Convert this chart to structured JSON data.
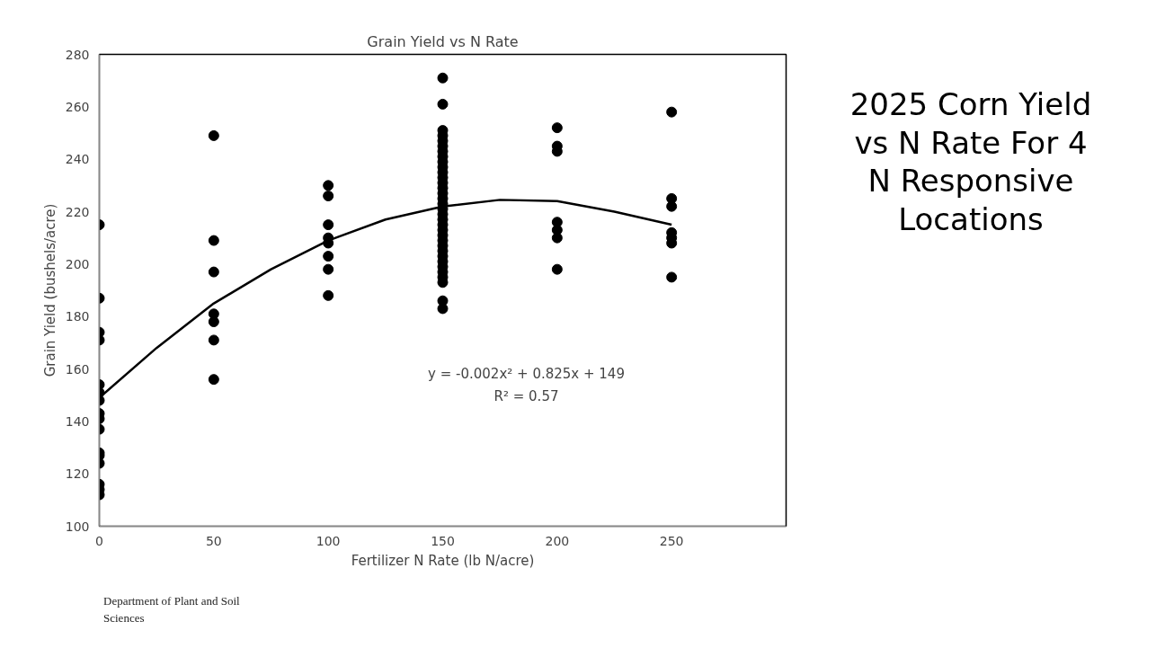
{
  "chart_data": {
    "type": "scatter",
    "title": "Grain Yield vs N Rate",
    "subtitle": "2025 Corn Yield\nvs N Rate For 4\nN Responsive\nLocations",
    "xlabel": "Fertilizer N Rate (lb N/acre)",
    "ylabel": "Grain Yield (bushels/acre)",
    "xlim": [
      0,
      300
    ],
    "xticks": [
      0,
      50,
      100,
      150,
      200,
      250
    ],
    "ylim": [
      100,
      280
    ],
    "yticks": [
      100,
      120,
      140,
      160,
      180,
      200,
      220,
      240,
      260,
      280
    ],
    "grid": false,
    "marker": "circle",
    "series": [
      {
        "color": "#000000",
        "x": [
          0,
          0,
          0,
          0,
          0,
          0,
          0,
          0,
          0,
          0,
          0,
          0,
          0,
          0,
          0,
          0,
          50,
          50,
          50,
          50,
          50,
          50,
          50,
          100,
          100,
          100,
          100,
          100,
          100,
          100,
          100,
          150,
          150,
          150,
          150,
          150,
          150,
          150,
          150,
          150,
          150,
          150,
          150,
          150,
          150,
          150,
          150,
          150,
          150,
          150,
          150,
          150,
          150,
          150,
          150,
          150,
          150,
          150,
          150,
          150,
          150,
          150,
          150,
          150,
          150,
          200,
          200,
          200,
          200,
          200,
          200,
          200,
          250,
          250,
          250,
          250,
          250,
          250,
          250
        ],
        "values": [
          215,
          187,
          174,
          171,
          154,
          151,
          148,
          143,
          141,
          137,
          128,
          127,
          124,
          116,
          114,
          112,
          249,
          209,
          197,
          181,
          178,
          171,
          156,
          230,
          226,
          215,
          210,
          208,
          203,
          198,
          188,
          271,
          261,
          251,
          249,
          247,
          245,
          243,
          241,
          239,
          237,
          235,
          233,
          231,
          229,
          227,
          225,
          223,
          221,
          219,
          217,
          215,
          213,
          211,
          209,
          207,
          205,
          203,
          201,
          199,
          197,
          195,
          193,
          186,
          183,
          252,
          245,
          243,
          216,
          213,
          210,
          198,
          258,
          225,
          222,
          212,
          210,
          208,
          195
        ]
      },
      {
        "type": "line",
        "color": "#000000",
        "marker": "none",
        "line_style": "solid",
        "x": [
          0,
          25,
          50,
          75,
          100,
          125,
          150,
          175,
          200,
          225,
          250
        ],
        "values": [
          149,
          168,
          185,
          198,
          209,
          217,
          222,
          224.5,
          224,
          220,
          215
        ]
      }
    ],
    "annotations": [
      "y = -0.002x² + 0.825x + 149",
      "R² = 0.57",
      "Department of Plant and Soil\nSciences"
    ]
  }
}
